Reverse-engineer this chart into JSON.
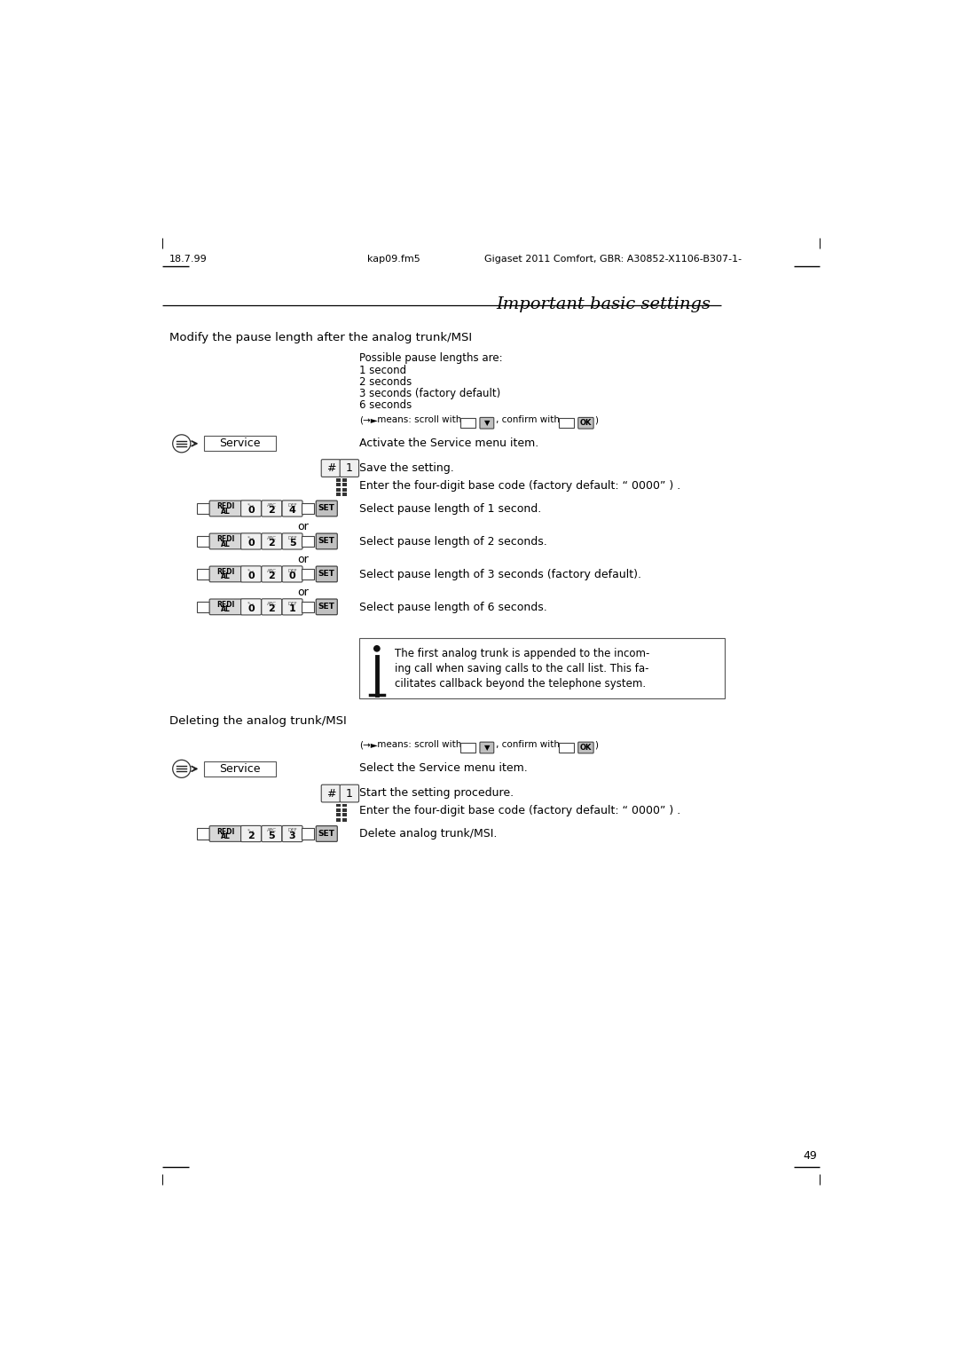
{
  "title": "Important basic settings",
  "header_left": "18.7.99",
  "header_center": "kap09.fm5",
  "header_right": "Gigaset 2011 Comfort, GBR: A30852-X1106-B307-1-",
  "page_number": "49",
  "section1_heading": "Modify the pause length after the analog trunk/MSI",
  "section2_heading": "Deleting the analog trunk/MSI",
  "pause_info": [
    "Possible pause lengths are:",
    "1 second",
    "2 seconds",
    "3 seconds (factory default)",
    "6 seconds"
  ],
  "service_text1": "Activate the Service menu item.",
  "service_text2": "Select the Service menu item.",
  "hash1_text": "Save the setting.",
  "hash2_text": "Start the setting procedure.",
  "keypad_text": "Enter the four-digit base code (factory default: “ 0000” ) .",
  "keypad_text2": "Enter the four-digit base code (factory default: “ 0000” ) .",
  "redial_rows": [
    {
      "keys": [
        "0",
        "2",
        "4"
      ],
      "text": "Select pause length of 1 second."
    },
    {
      "keys": [
        "0",
        "2",
        "5"
      ],
      "text": "Select pause length of 2 seconds."
    },
    {
      "keys": [
        "0",
        "2",
        "0"
      ],
      "text": "Select pause length of 3 seconds (factory default)."
    },
    {
      "keys": [
        "0",
        "2",
        "1"
      ],
      "text": "Select pause length of 6 seconds."
    }
  ],
  "redial_row_delete": {
    "keys": [
      "2",
      "5",
      "3"
    ],
    "text": "Delete analog trunk/MSI."
  },
  "note_text": [
    "The first analog trunk is appended to the incom-",
    "ing call when saving calls to the call list. This fa-",
    "cilitates callback beyond the telephone system."
  ],
  "bg_color": "#ffffff",
  "text_color": "#000000"
}
